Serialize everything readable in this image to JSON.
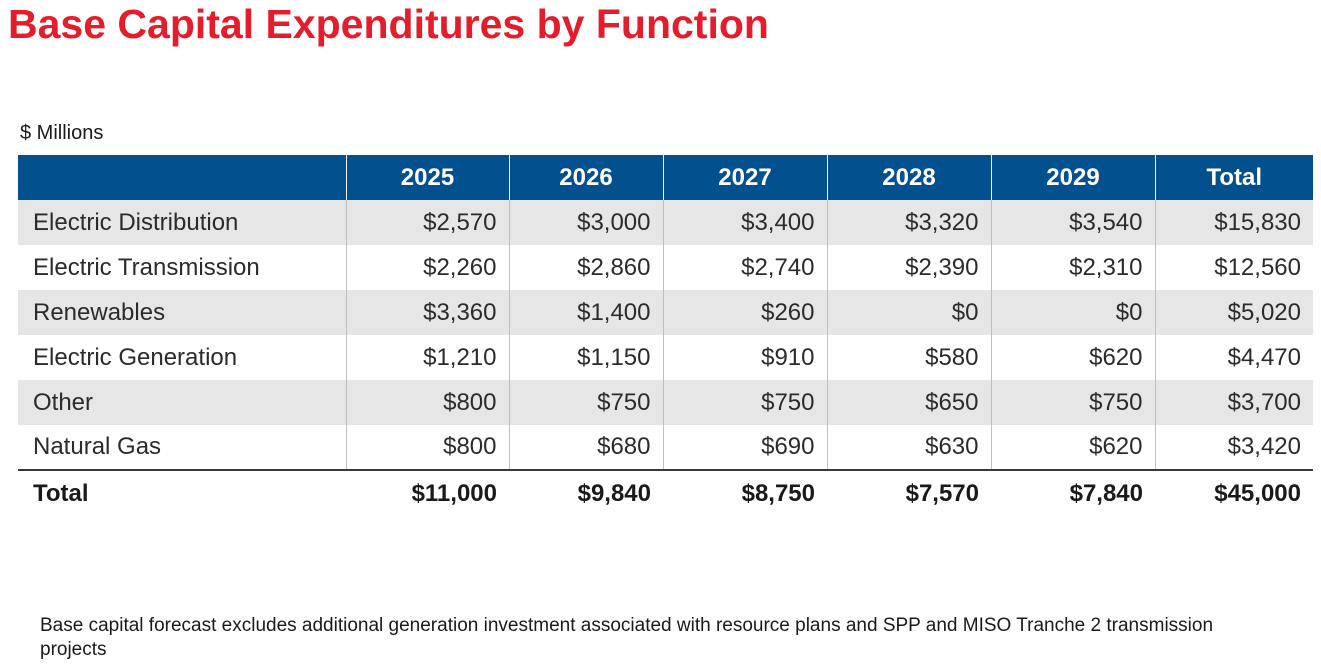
{
  "title": "Base Capital Expenditures by Function",
  "units": "$ Millions",
  "table": {
    "headers": [
      "",
      "2025",
      "2026",
      "2027",
      "2028",
      "2029",
      "Total"
    ],
    "rows": [
      {
        "label": "Electric Distribution",
        "values": [
          "$2,570",
          "$3,000",
          "$3,400",
          "$3,320",
          "$3,540",
          "$15,830"
        ]
      },
      {
        "label": "Electric Transmission",
        "values": [
          "$2,260",
          "$2,860",
          "$2,740",
          "$2,390",
          "$2,310",
          "$12,560"
        ]
      },
      {
        "label": "Renewables",
        "values": [
          "$3,360",
          "$1,400",
          "$260",
          "$0",
          "$0",
          "$5,020"
        ]
      },
      {
        "label": "Electric Generation",
        "values": [
          "$1,210",
          "$1,150",
          "$910",
          "$580",
          "$620",
          "$4,470"
        ]
      },
      {
        "label": "Other",
        "values": [
          "$800",
          "$750",
          "$750",
          "$650",
          "$750",
          "$3,700"
        ]
      },
      {
        "label": "Natural Gas",
        "values": [
          "$800",
          "$680",
          "$690",
          "$630",
          "$620",
          "$3,420"
        ]
      }
    ],
    "total": {
      "label": "Total",
      "values": [
        "$11,000",
        "$9,840",
        "$8,750",
        "$7,570",
        "$7,840",
        "$45,000"
      ]
    }
  },
  "footnote": "Base capital forecast excludes additional generation investment associated with resource plans and SPP and MISO Tranche 2 transmission projects",
  "colors": {
    "title": "#e31d2b",
    "header_bg": "#02508e",
    "row_shade": "#e6e6e6"
  }
}
